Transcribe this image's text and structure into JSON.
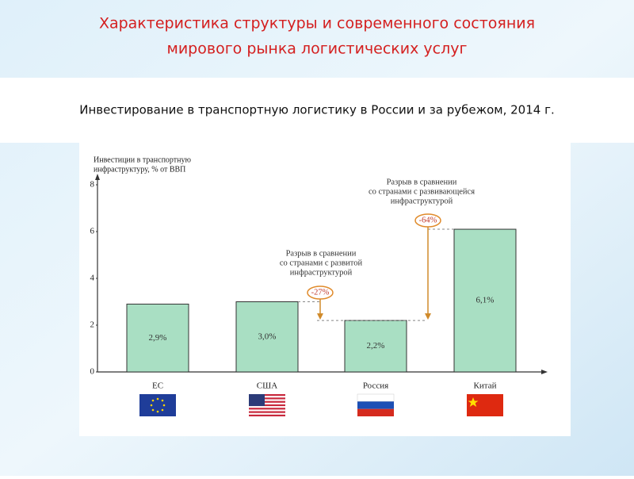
{
  "header": {
    "title": [
      "Характеристика структуры и современного состояния",
      "мирового рынка логистических услуг"
    ]
  },
  "chart_data": {
    "type": "bar",
    "title": "Инвестирование в транспортную логистику в России и за рубежом, 2014 г.",
    "y_label": [
      "Инвестиции в транспортную",
      "инфраструктуру, % от ВВП"
    ],
    "categories": [
      "ЕС",
      "США",
      "Россия",
      "Китай"
    ],
    "values": [
      2.9,
      3.0,
      2.2,
      6.1
    ],
    "value_labels": [
      "2,9%",
      "3,0%",
      "2,2%",
      "6,1%"
    ],
    "color": "#a9dfc3",
    "ylim": [
      0,
      8
    ],
    "yticks": [
      0,
      2,
      4,
      6,
      8
    ],
    "annotations": [
      {
        "text": [
          "Разрыв в сравнении",
          "со странами с развитой",
          "инфраструктурой"
        ],
        "label": "-27%"
      },
      {
        "text": [
          "Разрыв в сравнении",
          "со странами с развивающейся",
          "инфраструктурой"
        ],
        "label": "-64%"
      }
    ]
  }
}
